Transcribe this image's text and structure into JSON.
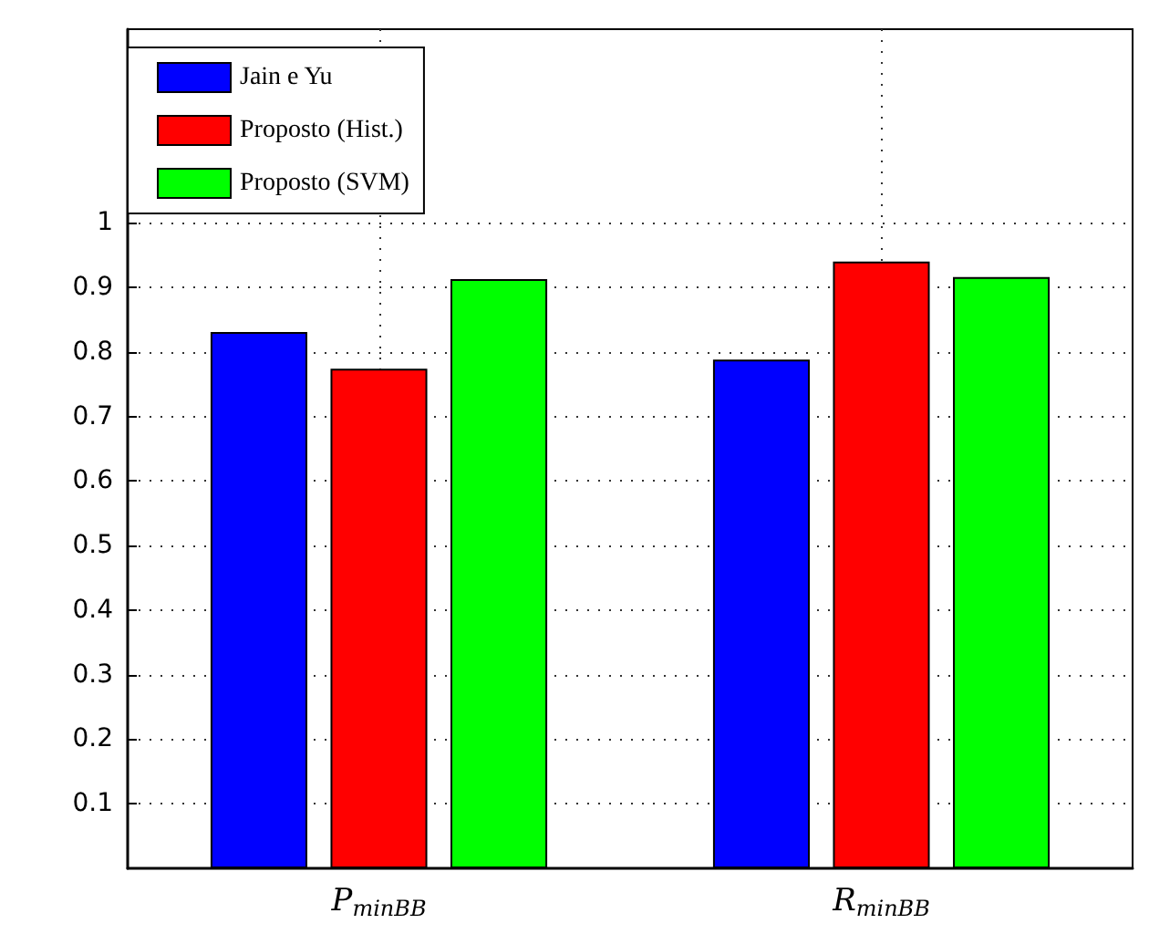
{
  "chart_data": {
    "type": "bar",
    "categories": [
      "P$_{minBB}$",
      "R$_{minBB}$"
    ],
    "series": [
      {
        "name": "Jain e Yu",
        "color": "#0000ff",
        "values": [
          0.831,
          0.788
        ]
      },
      {
        "name": "Proposto (Hist.)",
        "color": "#ff0000",
        "values": [
          0.774,
          0.94
        ]
      },
      {
        "name": "Proposto (SVM)",
        "color": "#00ff00",
        "values": [
          0.913,
          0.916
        ]
      }
    ],
    "ylim": [
      0,
      1.3
    ],
    "yticks": [
      0.1,
      0.2,
      0.3,
      0.4,
      0.5,
      0.6,
      0.7,
      0.8,
      0.9,
      1
    ],
    "grid": true,
    "legend": "top left"
  }
}
